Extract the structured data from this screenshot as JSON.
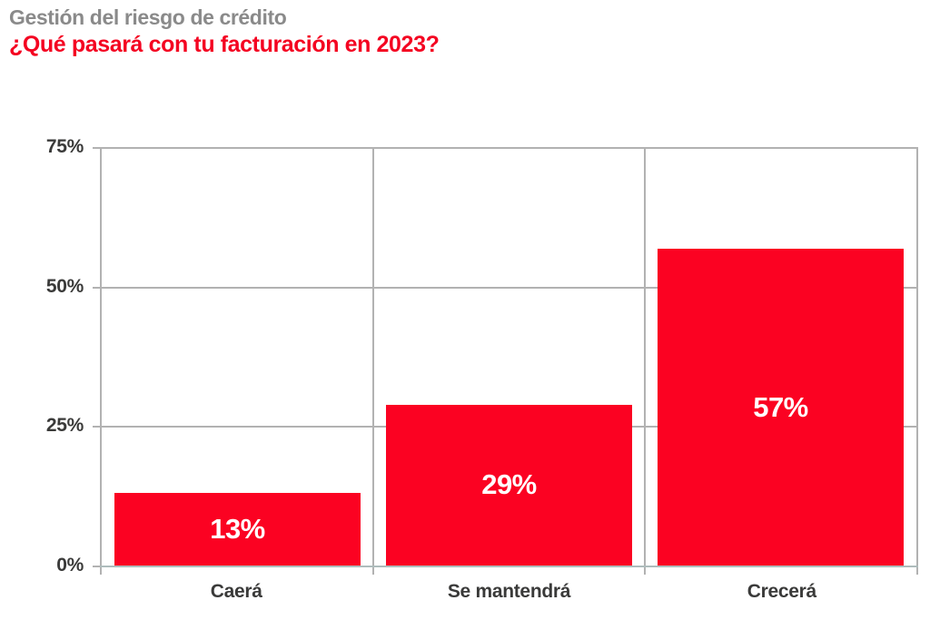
{
  "header": {
    "title": "Gestión del riesgo de crédito",
    "subtitle": "¿Qué pasará con tu facturación en 2023?"
  },
  "chart_data": {
    "type": "bar",
    "title": "Gestión del riesgo de crédito",
    "subtitle": "¿Qué pasará con tu facturación en 2023?",
    "categories": [
      "Caerá",
      "Se mantendrá",
      "Crecerá"
    ],
    "values": [
      13,
      29,
      57
    ],
    "value_labels": [
      "13%",
      "29%",
      "57%"
    ],
    "xlabel": "",
    "ylabel": "",
    "ylim": [
      0,
      75
    ],
    "yticks": [
      0,
      25,
      50,
      75
    ],
    "ytick_labels": [
      "0%",
      "25%",
      "50%",
      "75%"
    ],
    "grid": true,
    "legend": "none",
    "colors": {
      "bar": "#fb0222",
      "bar_label": "#ffffff",
      "title": "#8a8a8a",
      "subtitle": "#f40321",
      "axis_text": "#3a3a39",
      "gridline": "#b2b2b2",
      "baseline": "#aebcbc"
    }
  }
}
